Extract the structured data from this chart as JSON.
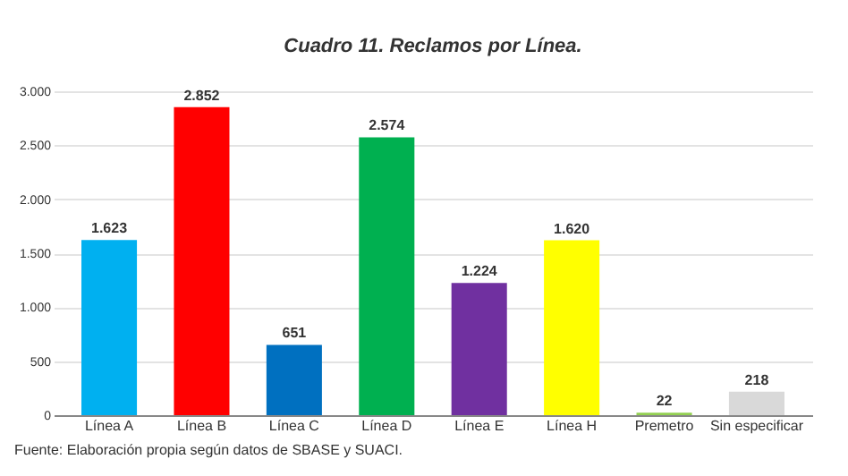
{
  "chart_data": {
    "type": "bar",
    "title": "Cuadro 11. Reclamos por Línea.",
    "categories": [
      "Línea A",
      "Línea B",
      "Línea C",
      "Línea D",
      "Línea E",
      "Línea H",
      "Premetro",
      "Sin especificar"
    ],
    "values": [
      1623,
      2852,
      651,
      2574,
      1224,
      1620,
      22,
      218
    ],
    "colors": [
      "#00b0f0",
      "#ff0000",
      "#0070c0",
      "#00b050",
      "#7030a0",
      "#ffff00",
      "#92d050",
      "#d9d9d9"
    ],
    "value_labels": [
      "1.623",
      "2.852",
      "651",
      "2.574",
      "1.224",
      "1.620",
      "22",
      "218"
    ],
    "ylim": [
      0,
      3000
    ],
    "yticks": [
      0,
      500,
      {
        "value": 1000,
        "label": "1.000"
      },
      {
        "value": 1500,
        "label": "1.500"
      },
      {
        "value": 2000,
        "label": "2.000"
      },
      {
        "value": 2500,
        "label": "2.500"
      },
      {
        "value": 3000,
        "label": "3.000"
      }
    ],
    "grid": "y",
    "annotations": [
      "Fuente: Elaboración propia según datos de SBASE y SUACI."
    ]
  }
}
